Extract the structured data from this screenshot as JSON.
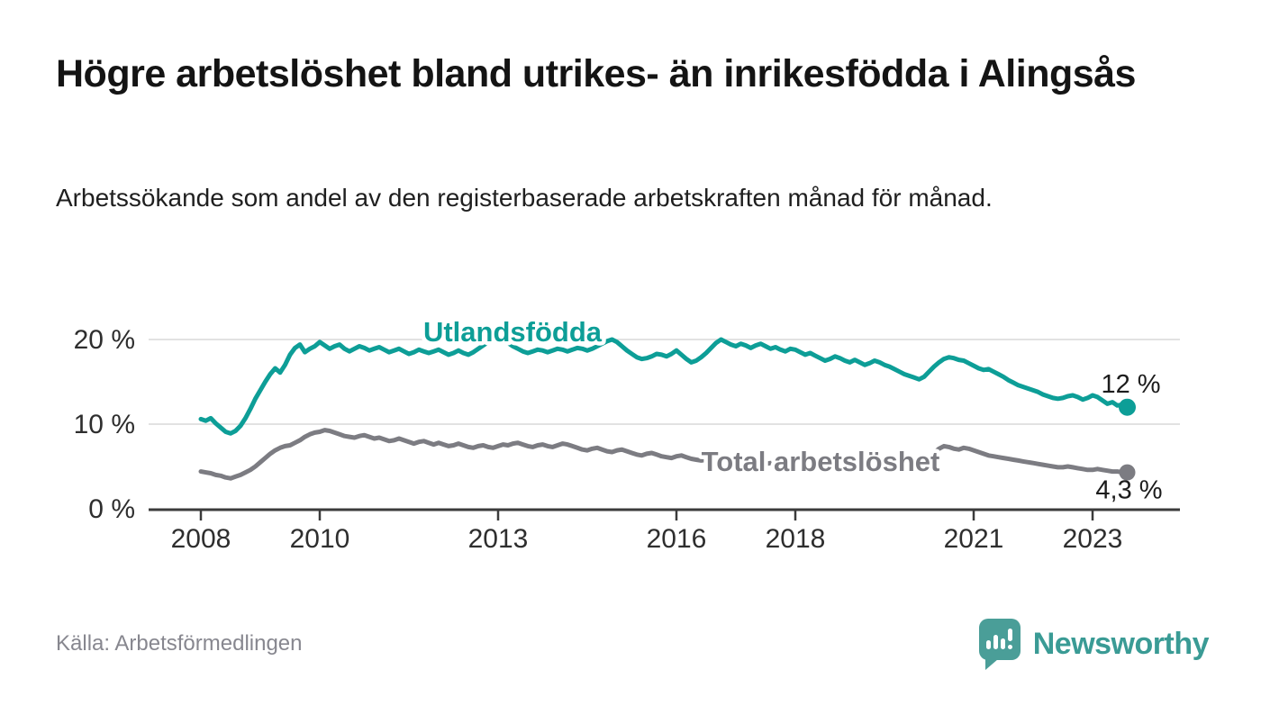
{
  "header": {
    "title": "Högre arbetslöshet bland utrikes- än inrikesfödda i Alingsås",
    "subtitle": "Arbetssökande som andel av den registerbaserade arbetskraften månad för månad."
  },
  "chart_data": {
    "type": "line",
    "title": "Högre arbetslöshet bland utrikes- än inrikesfödda i Alingsås",
    "subtitle": "Arbetssökande som andel av den registerbaserade arbetskraften månad för månad.",
    "unit": "%",
    "x_start": 2008.0,
    "x_step_years": 0.0833333,
    "x_axis_ticks": [
      2008,
      2010,
      2013,
      2016,
      2018,
      2021,
      2023
    ],
    "y_axis": {
      "range": [
        0,
        22
      ],
      "ticks": [
        {
          "value": 0,
          "label": "0 %"
        },
        {
          "value": 10,
          "label": "10 %"
        },
        {
          "value": 20,
          "label": "20 %"
        }
      ]
    },
    "grid": true,
    "legend": "inline-labels",
    "series": [
      {
        "id": "total",
        "name": "Total arbetslöshet",
        "color": "#7c7c82",
        "end_label": "4,3 %",
        "last_value": 4.3,
        "values": [
          4.4,
          4.3,
          4.2,
          4.0,
          3.9,
          3.7,
          3.6,
          3.8,
          4.0,
          4.3,
          4.6,
          5.0,
          5.5,
          6.0,
          6.5,
          6.9,
          7.2,
          7.4,
          7.5,
          7.8,
          8.1,
          8.5,
          8.8,
          9.0,
          9.1,
          9.3,
          9.2,
          9.0,
          8.8,
          8.6,
          8.5,
          8.4,
          8.6,
          8.7,
          8.5,
          8.3,
          8.4,
          8.2,
          8.0,
          8.1,
          8.3,
          8.1,
          7.9,
          7.7,
          7.9,
          8.0,
          7.8,
          7.6,
          7.8,
          7.6,
          7.4,
          7.5,
          7.7,
          7.5,
          7.3,
          7.2,
          7.4,
          7.5,
          7.3,
          7.2,
          7.4,
          7.6,
          7.5,
          7.7,
          7.8,
          7.6,
          7.4,
          7.3,
          7.5,
          7.6,
          7.4,
          7.3,
          7.5,
          7.7,
          7.6,
          7.4,
          7.2,
          7.0,
          6.9,
          7.1,
          7.2,
          7.0,
          6.8,
          6.7,
          6.9,
          7.0,
          6.8,
          6.6,
          6.4,
          6.3,
          6.5,
          6.6,
          6.4,
          6.2,
          6.1,
          6.0,
          6.2,
          6.3,
          6.1,
          5.9,
          5.8,
          5.7,
          5.8,
          5.9,
          5.8,
          5.6,
          5.5,
          5.4,
          5.6,
          5.7,
          5.5,
          5.4,
          5.3,
          5.2,
          5.3,
          5.4,
          5.3,
          5.2,
          5.1,
          5.0,
          5.2,
          5.3,
          5.1,
          5.0,
          4.9,
          4.8,
          4.9,
          5.0,
          4.9,
          4.8,
          4.7,
          4.7,
          4.8,
          4.9,
          4.8,
          4.7,
          4.6,
          4.6,
          4.7,
          4.8,
          4.7,
          4.7,
          4.6,
          4.6,
          4.7,
          4.9,
          5.3,
          6.0,
          6.6,
          7.1,
          7.4,
          7.3,
          7.1,
          7.0,
          7.2,
          7.1,
          6.9,
          6.7,
          6.5,
          6.3,
          6.2,
          6.1,
          6.0,
          5.9,
          5.8,
          5.7,
          5.6,
          5.5,
          5.4,
          5.3,
          5.2,
          5.1,
          5.0,
          4.9,
          4.9,
          5.0,
          4.9,
          4.8,
          4.7,
          4.6,
          4.6,
          4.7,
          4.6,
          4.5,
          4.4,
          4.4,
          4.3,
          4.3
        ]
      },
      {
        "id": "utlandsfodda",
        "name": "Utlandsfödda",
        "color": "#0d9e97",
        "end_label": "12 %",
        "last_value": 12.0,
        "values": [
          10.6,
          10.4,
          10.7,
          10.1,
          9.6,
          9.1,
          8.9,
          9.2,
          9.8,
          10.7,
          11.8,
          13.0,
          14.0,
          15.0,
          15.9,
          16.6,
          16.1,
          17.0,
          18.2,
          19.0,
          19.4,
          18.5,
          18.9,
          19.2,
          19.7,
          19.3,
          18.9,
          19.2,
          19.4,
          18.9,
          18.6,
          18.9,
          19.2,
          19.0,
          18.7,
          18.9,
          19.1,
          18.8,
          18.5,
          18.7,
          18.9,
          18.6,
          18.3,
          18.5,
          18.8,
          18.6,
          18.4,
          18.6,
          18.8,
          18.5,
          18.2,
          18.4,
          18.7,
          18.4,
          18.2,
          18.5,
          18.9,
          19.3,
          19.7,
          20.1,
          20.4,
          20.1,
          19.6,
          19.2,
          18.9,
          18.6,
          18.4,
          18.6,
          18.8,
          18.7,
          18.5,
          18.7,
          18.9,
          18.8,
          18.6,
          18.8,
          19.0,
          18.9,
          18.7,
          18.9,
          19.2,
          19.5,
          19.8,
          20.0,
          19.7,
          19.2,
          18.7,
          18.3,
          17.9,
          17.7,
          17.8,
          18.0,
          18.3,
          18.2,
          18.0,
          18.3,
          18.7,
          18.2,
          17.7,
          17.3,
          17.5,
          17.9,
          18.4,
          19.0,
          19.6,
          20.0,
          19.7,
          19.4,
          19.2,
          19.5,
          19.3,
          19.0,
          19.3,
          19.5,
          19.2,
          18.9,
          19.1,
          18.8,
          18.6,
          18.9,
          18.8,
          18.5,
          18.2,
          18.4,
          18.1,
          17.8,
          17.5,
          17.7,
          18.0,
          17.8,
          17.5,
          17.3,
          17.6,
          17.3,
          17.0,
          17.2,
          17.5,
          17.3,
          17.0,
          16.8,
          16.5,
          16.2,
          15.9,
          15.7,
          15.5,
          15.3,
          15.6,
          16.2,
          16.8,
          17.3,
          17.7,
          17.9,
          17.8,
          17.6,
          17.5,
          17.2,
          16.9,
          16.6,
          16.4,
          16.5,
          16.2,
          15.9,
          15.6,
          15.2,
          14.9,
          14.6,
          14.4,
          14.2,
          14.0,
          13.8,
          13.5,
          13.3,
          13.1,
          13.0,
          13.1,
          13.3,
          13.4,
          13.2,
          12.9,
          13.1,
          13.4,
          13.2,
          12.8,
          12.4,
          12.6,
          12.2,
          12.3,
          12.0
        ]
      }
    ]
  },
  "footer": {
    "source": "Källa: Arbetsförmedlingen",
    "brand": "Newsworthy"
  },
  "colors": {
    "accent_teal": "#0d9e97",
    "line_gray": "#7c7c82",
    "logo_teal": "#4a9e98",
    "brand_text_teal": "#3a9b95",
    "gridline": "#d9d9d9",
    "axis": "#3b3b3b"
  }
}
